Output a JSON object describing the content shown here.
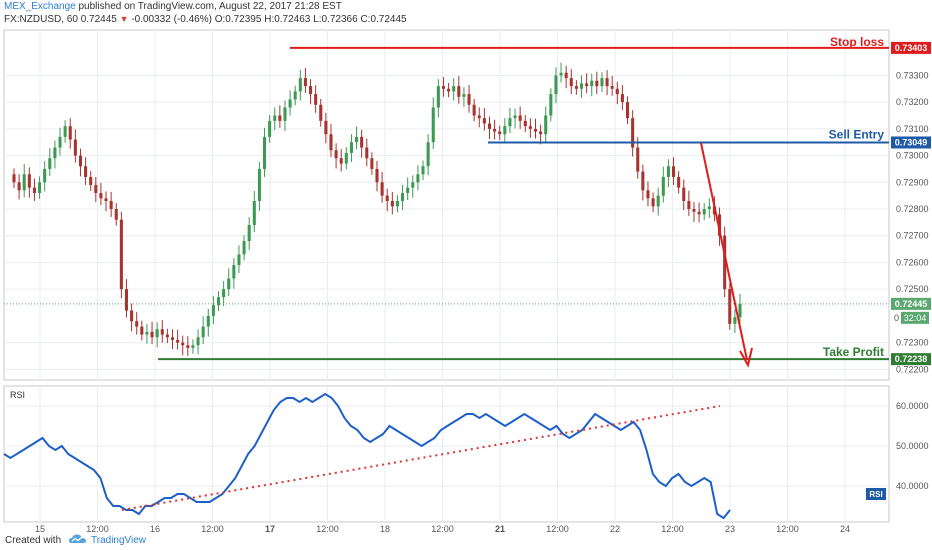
{
  "header": {
    "publisher": "MEX_Exchange",
    "published_text": "published on TradingView.com, August 22, 2017 21:28 EST",
    "symbol": "FX:NZDUSD, 60",
    "last": "0.72445",
    "change": "-0.00332 (-0.46%)",
    "open_label": "O:",
    "open": "0.72395",
    "high_label": "H:",
    "high": "0.72463",
    "low_label": "L:",
    "low": "0.72366",
    "close_label": "C:",
    "close": "0.72445"
  },
  "footer": {
    "created_with": "Created with",
    "brand": "TradingView"
  },
  "colors": {
    "up": "#3d9a55",
    "down": "#a8332f",
    "stop": "#e01b1b",
    "entry": "#1f5aa6",
    "profit": "#2e7d32",
    "rsi": "#1e5fc9",
    "grid": "#e9eef2",
    "axis": "#555555",
    "current": "#5aa870",
    "trend": "#e03030",
    "border": "#c8c8c8"
  },
  "chart_data": [
    {
      "type": "candlestick",
      "symbol": "FX:NZDUSD",
      "interval": "60",
      "y_ticks": [
        "0.73300",
        "0.73200",
        "0.73100",
        "0.73000",
        "0.72900",
        "0.72800",
        "0.72700",
        "0.72600",
        "0.72500",
        "0.72300",
        "0.72200"
      ],
      "x_ticks": [
        "15",
        "12:00",
        "16",
        "12:00",
        "17",
        "12:00",
        "18",
        "12:00",
        "21",
        "12:00",
        "22",
        "12:00",
        "23",
        "12:00",
        "24"
      ],
      "ylim": [
        0.7216,
        0.7347
      ],
      "levels": [
        {
          "name": "Stop loss",
          "price": 0.73403,
          "label": "0.73403"
        },
        {
          "name": "Sell Entry",
          "price": 0.73049,
          "label": "0.73049"
        },
        {
          "name": "Take Profit",
          "price": 0.72238,
          "label": "0.72238"
        }
      ],
      "current_price": {
        "price": 0.72445,
        "label": "0.72445",
        "countdown": "32:04",
        "prefix": "0"
      },
      "approx_closes": [
        0.729,
        0.7287,
        0.7293,
        0.7288,
        0.7286,
        0.729,
        0.7295,
        0.7299,
        0.7303,
        0.7307,
        0.7311,
        0.7306,
        0.73,
        0.7296,
        0.7292,
        0.7289,
        0.7286,
        0.7284,
        0.7283,
        0.728,
        0.7276,
        0.725,
        0.7242,
        0.7238,
        0.7236,
        0.7233,
        0.7234,
        0.7232,
        0.7235,
        0.7233,
        0.7232,
        0.7231,
        0.723,
        0.7229,
        0.7228,
        0.7229,
        0.7232,
        0.7236,
        0.724,
        0.7244,
        0.7247,
        0.725,
        0.7254,
        0.7259,
        0.7263,
        0.7268,
        0.7274,
        0.7283,
        0.7295,
        0.7307,
        0.7313,
        0.7315,
        0.7313,
        0.7318,
        0.7321,
        0.7324,
        0.7329,
        0.7326,
        0.7323,
        0.7319,
        0.7313,
        0.7308,
        0.7302,
        0.7299,
        0.7297,
        0.7301,
        0.7305,
        0.7307,
        0.7303,
        0.7299,
        0.7295,
        0.729,
        0.7285,
        0.7283,
        0.7281,
        0.7283,
        0.7286,
        0.7288,
        0.729,
        0.7293,
        0.7296,
        0.7305,
        0.7318,
        0.7326,
        0.7325,
        0.7324,
        0.7326,
        0.7322,
        0.7323,
        0.7319,
        0.7315,
        0.7314,
        0.7312,
        0.731,
        0.7309,
        0.7308,
        0.7311,
        0.7314,
        0.7315,
        0.7313,
        0.7311,
        0.731,
        0.7309,
        0.7308,
        0.7315,
        0.7323,
        0.733,
        0.7331,
        0.7329,
        0.7326,
        0.7325,
        0.7327,
        0.7326,
        0.7328,
        0.7326,
        0.7329,
        0.7326,
        0.7325,
        0.7323,
        0.732,
        0.7314,
        0.7303,
        0.7294,
        0.7287,
        0.7284,
        0.7281,
        0.7285,
        0.7292,
        0.7296,
        0.7292,
        0.7288,
        0.7283,
        0.728,
        0.7279,
        0.7278,
        0.728,
        0.7281,
        0.7278,
        0.727,
        0.725,
        0.7237,
        0.72395,
        0.72445
      ]
    },
    {
      "type": "line",
      "name": "RSI",
      "y_ticks": [
        "60.0000",
        "50.0000",
        "40.0000"
      ],
      "ylim": [
        31,
        65
      ],
      "values": [
        48,
        47,
        48,
        49,
        50,
        51,
        52,
        50,
        49,
        50,
        48,
        47,
        46,
        45,
        44,
        42,
        37,
        35,
        35,
        34,
        34,
        33,
        35,
        35,
        36,
        37,
        37,
        38,
        38,
        37,
        36,
        36,
        36,
        37,
        38,
        40,
        42,
        45,
        48,
        50,
        53,
        56,
        59,
        61,
        62,
        62,
        61,
        62,
        61,
        62,
        63,
        62,
        60,
        57,
        55,
        54,
        52,
        51,
        52,
        53,
        55,
        54,
        53,
        52,
        51,
        50,
        51,
        52,
        54,
        55,
        56,
        57,
        58,
        58,
        57,
        58,
        57,
        56,
        55,
        56,
        57,
        58,
        57,
        56,
        55,
        54,
        55,
        53,
        52,
        53,
        54,
        56,
        58,
        57,
        56,
        55,
        54,
        55,
        56,
        54,
        49,
        43,
        41,
        40,
        42,
        43,
        41,
        40,
        41,
        42,
        41,
        33,
        32,
        34
      ],
      "trendline": {
        "from": 34,
        "to": 60
      }
    }
  ],
  "annotations": {
    "stop_label": "Stop loss",
    "entry_label": "Sell Entry",
    "profit_label": "Take Profit",
    "rsi_title": "RSI",
    "rsi_badge": "RSI"
  }
}
